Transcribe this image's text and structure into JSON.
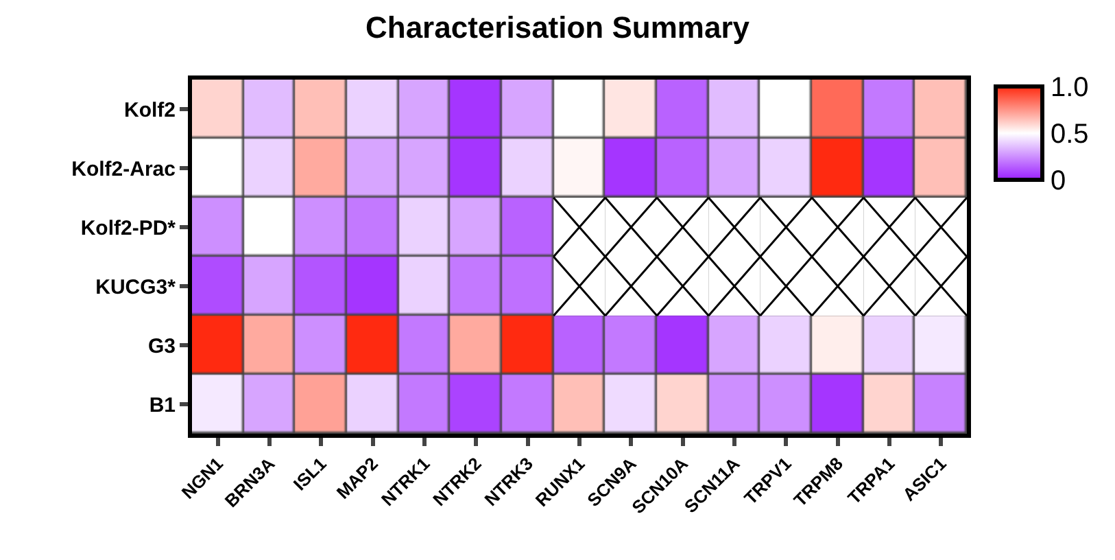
{
  "chart_data": {
    "type": "heatmap",
    "title": "Characterisation Summary",
    "categories": [
      "NGN1",
      "BRN3A",
      "ISL1",
      "MAP2",
      "NTRK1",
      "NTRK2",
      "NTRK3",
      "RUNX1",
      "SCN9A",
      "SCN10A",
      "SCN11A",
      "TRPV1",
      "TRPM8",
      "TRPA1",
      "ASIC1"
    ],
    "y_categories": [
      "Kolf2",
      "Kolf2-Arac",
      "Kolf2-PD*",
      "KUCG3*",
      "G3",
      "B1"
    ],
    "cells": [
      [
        0.6,
        0.35,
        0.65,
        0.4,
        0.3,
        0.05,
        0.3,
        0.5,
        0.56,
        0.15,
        0.35,
        0.5,
        0.85,
        0.2,
        0.65
      ],
      [
        0.5,
        0.4,
        0.7,
        0.3,
        0.3,
        0.05,
        0.4,
        0.52,
        0.05,
        0.15,
        0.3,
        0.4,
        1.0,
        0.05,
        0.65
      ],
      [
        0.25,
        0.5,
        0.25,
        0.2,
        0.4,
        0.3,
        0.15,
        null,
        null,
        null,
        null,
        null,
        null,
        null,
        null
      ],
      [
        0.1,
        0.3,
        0.12,
        0.05,
        0.4,
        0.2,
        0.18,
        null,
        null,
        null,
        null,
        null,
        null,
        null,
        null
      ],
      [
        1.0,
        0.7,
        0.25,
        1.0,
        0.2,
        0.7,
        1.0,
        0.15,
        0.2,
        0.05,
        0.3,
        0.4,
        0.54,
        0.4,
        0.45
      ],
      [
        0.45,
        0.3,
        0.72,
        0.4,
        0.2,
        0.08,
        0.2,
        0.65,
        0.42,
        0.6,
        0.25,
        0.25,
        0.05,
        0.6,
        0.22
      ]
    ],
    "clim": [
      0,
      1
    ],
    "cticks": [
      0,
      0.5,
      {
        "value": 1,
        "label": "1.0"
      }
    ]
  }
}
